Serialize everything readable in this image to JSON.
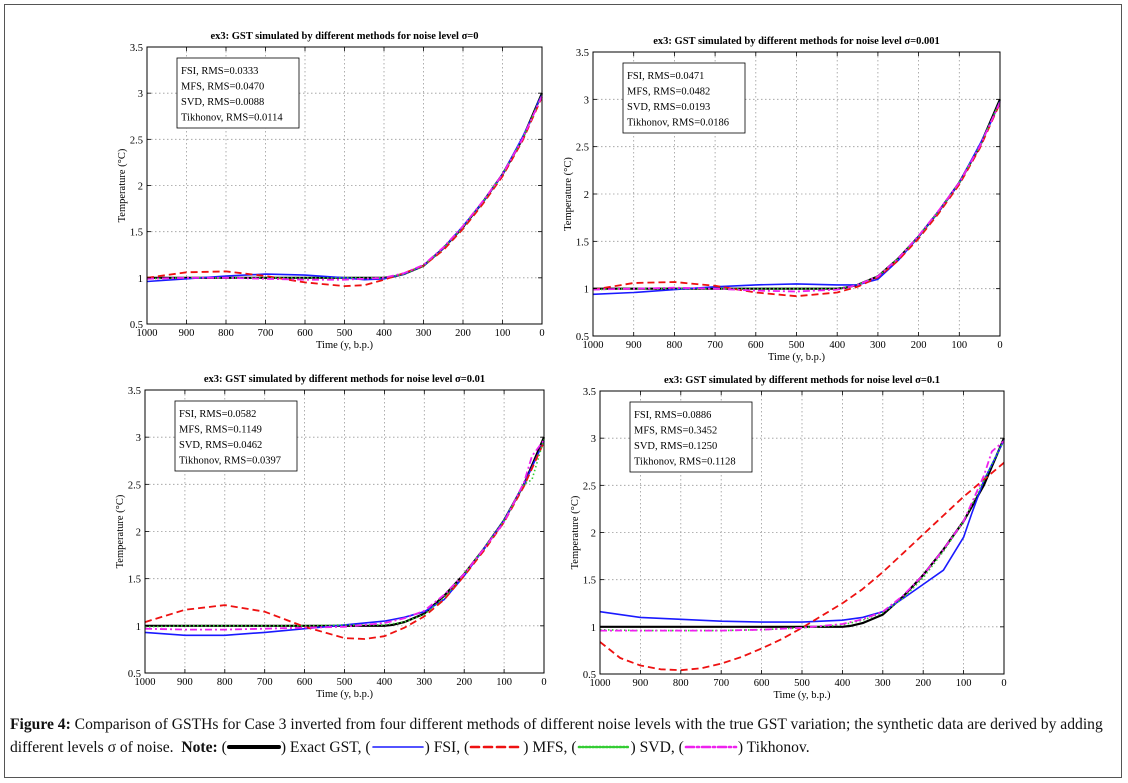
{
  "chart_data": [
    {
      "type": "line",
      "title": "ex3: GST simulated by different methods for noise level σ=0",
      "xlabel": "Time (y, b.p.)",
      "ylabel": "Temperature (°C)",
      "xlim": [
        1000,
        0
      ],
      "ylim": [
        0.5,
        3.5
      ],
      "xticks": [
        "1000",
        "900",
        "800",
        "700",
        "600",
        "500",
        "400",
        "300",
        "200",
        "100",
        "0"
      ],
      "yticks": [
        "0.5",
        "1",
        "1.5",
        "2",
        "2.5",
        "3",
        "3.5"
      ],
      "grid": true,
      "legend_box": [
        "FSI,  RMS=0.0333",
        "MFS,  RMS=0.0470",
        "SVD,  RMS=0.0088",
        "Tikhonov,  RMS=0.0114"
      ],
      "series": [
        {
          "color": "#000000",
          "x": [
            1000,
            900,
            800,
            700,
            600,
            500,
            400,
            380,
            350,
            300,
            250,
            200,
            150,
            100,
            50,
            0
          ],
          "values": [
            1,
            1,
            1,
            1,
            1,
            1,
            1,
            1.01,
            1.04,
            1.13,
            1.32,
            1.55,
            1.82,
            2.12,
            2.5,
            3
          ]
        },
        {
          "color": "#1a1aff",
          "x": [
            1000,
            900,
            800,
            700,
            600,
            500,
            450,
            400,
            350,
            300,
            250,
            200,
            150,
            100,
            50,
            20,
            10,
            0
          ],
          "values": [
            0.96,
            0.99,
            1.02,
            1.04,
            1.03,
            1.0,
            0.98,
            0.99,
            1.04,
            1.13,
            1.32,
            1.56,
            1.82,
            2.12,
            2.52,
            2.78,
            2.9,
            2.98
          ]
        },
        {
          "color": "#ee1111",
          "x": [
            1000,
            900,
            800,
            700,
            600,
            500,
            450,
            400,
            350,
            300,
            250,
            200,
            150,
            100,
            50,
            0
          ],
          "values": [
            1.0,
            1.06,
            1.07,
            1.02,
            0.95,
            0.91,
            0.92,
            0.98,
            1.05,
            1.13,
            1.3,
            1.53,
            1.8,
            2.1,
            2.48,
            2.96
          ]
        },
        {
          "color": "#33cc33",
          "x": [
            1000,
            900,
            800,
            700,
            600,
            500,
            400,
            350,
            300,
            250,
            200,
            150,
            100,
            50,
            0
          ],
          "values": [
            0.99,
            1.0,
            1.0,
            1.0,
            1.0,
            1.0,
            1.0,
            1.04,
            1.13,
            1.32,
            1.55,
            1.82,
            2.12,
            2.5,
            2.98
          ]
        },
        {
          "color": "#ee22ee",
          "x": [
            1000,
            900,
            800,
            700,
            600,
            500,
            400,
            350,
            300,
            250,
            200,
            150,
            100,
            50,
            0
          ],
          "values": [
            0.99,
            1.0,
            1.0,
            0.99,
            0.98,
            0.98,
            1.0,
            1.05,
            1.14,
            1.33,
            1.56,
            1.83,
            2.12,
            2.5,
            2.97
          ]
        }
      ]
    },
    {
      "type": "line",
      "title": "ex3: GST simulated by different methods for noise level σ=0.001",
      "xlabel": "Time (y, b.p.)",
      "ylabel": "Temperature (°C)",
      "xlim": [
        1000,
        0
      ],
      "ylim": [
        0.5,
        3.5
      ],
      "xticks": [
        "1000",
        "900",
        "800",
        "700",
        "600",
        "500",
        "400",
        "300",
        "200",
        "100",
        "0"
      ],
      "yticks": [
        "0.5",
        "1",
        "1.5",
        "2",
        "2.5",
        "3",
        "3.5"
      ],
      "grid": true,
      "legend_box": [
        "FSI,  RMS=0.0471",
        "MFS,  RMS=0.0482",
        "SVD,  RMS=0.0193",
        "Tikhonov,  RMS=0.0186"
      ],
      "series": [
        {
          "color": "#000000",
          "x": [
            1000,
            900,
            800,
            700,
            600,
            500,
            400,
            380,
            350,
            300,
            250,
            200,
            150,
            100,
            50,
            0
          ],
          "values": [
            1,
            1,
            1,
            1,
            1,
            1,
            1,
            1.01,
            1.04,
            1.13,
            1.32,
            1.55,
            1.82,
            2.12,
            2.5,
            3
          ]
        },
        {
          "color": "#1a1aff",
          "x": [
            1000,
            900,
            800,
            700,
            600,
            500,
            400,
            350,
            300,
            250,
            200,
            150,
            100,
            50,
            20,
            0
          ],
          "values": [
            0.94,
            0.96,
            0.99,
            1.02,
            1.04,
            1.05,
            1.04,
            1.04,
            1.1,
            1.3,
            1.55,
            1.82,
            2.12,
            2.52,
            2.78,
            2.98
          ]
        },
        {
          "color": "#ee1111",
          "x": [
            1000,
            900,
            800,
            700,
            600,
            500,
            400,
            350,
            300,
            250,
            200,
            150,
            100,
            50,
            0
          ],
          "values": [
            0.99,
            1.06,
            1.07,
            1.03,
            0.96,
            0.92,
            0.96,
            1.02,
            1.12,
            1.3,
            1.53,
            1.8,
            2.1,
            2.48,
            2.96
          ]
        },
        {
          "color": "#33cc33",
          "x": [
            1000,
            900,
            800,
            700,
            600,
            500,
            400,
            350,
            300,
            250,
            200,
            150,
            100,
            50,
            0
          ],
          "values": [
            0.99,
            1.0,
            1.0,
            1.0,
            1.0,
            1.0,
            1.0,
            1.04,
            1.13,
            1.32,
            1.55,
            1.82,
            2.12,
            2.5,
            2.98
          ]
        },
        {
          "color": "#ee22ee",
          "x": [
            1000,
            900,
            800,
            700,
            600,
            500,
            400,
            350,
            300,
            250,
            200,
            150,
            100,
            50,
            0
          ],
          "values": [
            0.99,
            1.0,
            1.01,
            1.0,
            0.98,
            0.97,
            0.99,
            1.04,
            1.13,
            1.32,
            1.56,
            1.83,
            2.12,
            2.5,
            2.97
          ]
        }
      ]
    },
    {
      "type": "line",
      "title": "ex3: GST simulated by different methods for noise level σ=0.01",
      "xlabel": "Time (y, b.p.)",
      "ylabel": "Temperature (°C)",
      "xlim": [
        1000,
        0
      ],
      "ylim": [
        0.5,
        3.5
      ],
      "xticks": [
        "1000",
        "900",
        "800",
        "700",
        "600",
        "500",
        "400",
        "300",
        "200",
        "100",
        "0"
      ],
      "yticks": [
        "0.5",
        "1",
        "1.5",
        "2",
        "2.5",
        "3",
        "3.5"
      ],
      "grid": true,
      "legend_box": [
        "FSI,  RMS=0.0582",
        "MFS,  RMS=0.1149",
        "SVD,  RMS=0.0462",
        "Tikhonov,  RMS=0.0397"
      ],
      "series": [
        {
          "color": "#000000",
          "x": [
            1000,
            900,
            800,
            700,
            600,
            500,
            400,
            380,
            350,
            300,
            250,
            200,
            150,
            100,
            50,
            0
          ],
          "values": [
            1,
            1,
            1,
            1,
            1,
            1,
            1,
            1.01,
            1.04,
            1.13,
            1.32,
            1.55,
            1.82,
            2.12,
            2.5,
            3
          ]
        },
        {
          "color": "#1a1aff",
          "x": [
            1000,
            900,
            800,
            700,
            600,
            500,
            400,
            350,
            300,
            250,
            200,
            150,
            100,
            50,
            0
          ],
          "values": [
            0.93,
            0.9,
            0.9,
            0.93,
            0.97,
            1.01,
            1.05,
            1.09,
            1.15,
            1.28,
            1.53,
            1.82,
            2.12,
            2.5,
            2.96
          ]
        },
        {
          "color": "#ee1111",
          "x": [
            1000,
            900,
            800,
            700,
            600,
            500,
            450,
            400,
            350,
            300,
            250,
            200,
            150,
            100,
            50,
            0
          ],
          "values": [
            1.04,
            1.17,
            1.22,
            1.15,
            0.99,
            0.87,
            0.86,
            0.89,
            0.98,
            1.1,
            1.28,
            1.53,
            1.8,
            2.1,
            2.48,
            2.95
          ]
        },
        {
          "color": "#33cc33",
          "x": [
            1000,
            900,
            800,
            700,
            600,
            500,
            400,
            350,
            300,
            250,
            200,
            150,
            100,
            50,
            30,
            0
          ],
          "values": [
            0.99,
            1.0,
            1.0,
            1.0,
            1.0,
            1.01,
            1.01,
            1.04,
            1.12,
            1.3,
            1.55,
            1.82,
            2.12,
            2.5,
            2.55,
            2.98
          ]
        },
        {
          "color": "#ee22ee",
          "x": [
            1000,
            900,
            800,
            700,
            600,
            500,
            400,
            350,
            300,
            250,
            200,
            150,
            100,
            50,
            30,
            0
          ],
          "values": [
            0.97,
            0.96,
            0.96,
            0.97,
            0.98,
            0.99,
            1.03,
            1.08,
            1.16,
            1.33,
            1.55,
            1.82,
            2.1,
            2.52,
            2.8,
            2.97
          ]
        }
      ]
    },
    {
      "type": "line",
      "title": "ex3: GST simulated by different methods for noise level σ=0.1",
      "xlabel": "Time (y, b.p.)",
      "ylabel": "Temperature (°C)",
      "xlim": [
        1000,
        0
      ],
      "ylim": [
        0.5,
        3.5
      ],
      "xticks": [
        "1000",
        "900",
        "800",
        "700",
        "600",
        "500",
        "400",
        "300",
        "200",
        "100",
        "0"
      ],
      "yticks": [
        "0.5",
        "1",
        "1.5",
        "2",
        "2.5",
        "3",
        "3.5"
      ],
      "grid": true,
      "legend_box": [
        "FSI,  RMS=0.0886",
        "MFS,  RMS=0.3452",
        "SVD,  RMS=0.1250",
        "Tikhonov,  RMS=0.1128"
      ],
      "series": [
        {
          "color": "#000000",
          "x": [
            1000,
            900,
            800,
            700,
            600,
            500,
            400,
            380,
            350,
            300,
            250,
            200,
            150,
            100,
            50,
            0
          ],
          "values": [
            1,
            1,
            1,
            1,
            1,
            1,
            1,
            1.01,
            1.04,
            1.13,
            1.32,
            1.55,
            1.82,
            2.12,
            2.5,
            3
          ]
        },
        {
          "color": "#1a1aff",
          "x": [
            1000,
            900,
            800,
            700,
            600,
            500,
            400,
            350,
            300,
            250,
            200,
            150,
            100,
            80,
            50,
            0
          ],
          "values": [
            1.16,
            1.1,
            1.08,
            1.06,
            1.05,
            1.05,
            1.07,
            1.1,
            1.16,
            1.3,
            1.45,
            1.6,
            1.95,
            2.2,
            2.55,
            2.98
          ]
        },
        {
          "color": "#ee1111",
          "x": [
            1000,
            950,
            900,
            850,
            800,
            750,
            700,
            650,
            600,
            550,
            500,
            450,
            400,
            350,
            300,
            250,
            200,
            150,
            100,
            50,
            0
          ],
          "values": [
            0.84,
            0.67,
            0.59,
            0.55,
            0.54,
            0.56,
            0.61,
            0.68,
            0.77,
            0.87,
            0.99,
            1.12,
            1.25,
            1.4,
            1.58,
            1.78,
            1.98,
            2.18,
            2.38,
            2.56,
            2.74
          ]
        },
        {
          "color": "#33cc33",
          "x": [
            1000,
            900,
            800,
            700,
            600,
            500,
            400,
            350,
            300,
            250,
            200,
            150,
            100,
            50,
            0
          ],
          "values": [
            0.97,
            0.96,
            0.96,
            0.96,
            0.97,
            0.99,
            1.02,
            1.07,
            1.15,
            1.3,
            1.52,
            1.8,
            2.12,
            2.55,
            2.98
          ]
        },
        {
          "color": "#ee22ee",
          "x": [
            1000,
            900,
            800,
            700,
            600,
            500,
            400,
            350,
            300,
            250,
            200,
            150,
            100,
            50,
            30,
            0
          ],
          "values": [
            0.96,
            0.96,
            0.96,
            0.96,
            0.97,
            0.99,
            1.03,
            1.08,
            1.16,
            1.33,
            1.55,
            1.82,
            2.12,
            2.6,
            2.86,
            2.97
          ]
        }
      ]
    }
  ],
  "caption": {
    "figure_label": "Figure 4:",
    "text": " Comparison of GSTHs for Case 3 inverted from four different methods of different noise levels with the true GST variation; the synthetic data are derived by adding different levels σ of noise.",
    "note_label": "Note:",
    "legend": [
      {
        "label": ") Exact GST, (",
        "color": "#000000",
        "style": "solid-thick"
      },
      {
        "label": ") FSI, (",
        "color": "#1a1aff",
        "style": "solid"
      },
      {
        "label": ") MFS, (",
        "color": "#ee1111",
        "style": "dashed"
      },
      {
        "label": ") SVD, (",
        "color": "#33cc33",
        "style": "dotted"
      },
      {
        "label": ") Tikhonov.",
        "color": "#ee22ee",
        "style": "dashdot"
      }
    ]
  }
}
